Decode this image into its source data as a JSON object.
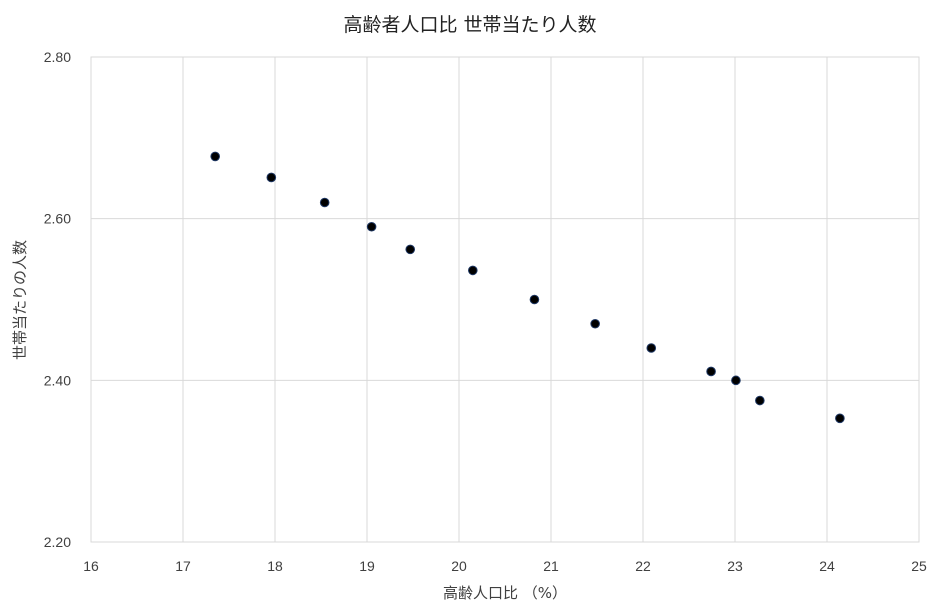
{
  "chart_data": {
    "type": "scatter",
    "title": "高齢者人口比 世帯当たり人数",
    "xlabel": "高齢人口比 （%）",
    "ylabel": "世帯当たりの人数",
    "xlim": [
      16,
      25
    ],
    "ylim": [
      2.2,
      2.8
    ],
    "x_ticks": [
      "16",
      "17",
      "18",
      "19",
      "20",
      "21",
      "22",
      "23",
      "24",
      "25"
    ],
    "y_ticks": [
      "2.20",
      "2.40",
      "2.60",
      "2.80"
    ],
    "x_tick_values": [
      16,
      17,
      18,
      19,
      20,
      21,
      22,
      23,
      24,
      25
    ],
    "y_tick_values": [
      2.2,
      2.4,
      2.6,
      2.8
    ],
    "grid": true,
    "legend": "none",
    "marker_color": "#000000",
    "marker_edge_color": "#1f3864",
    "points": [
      {
        "x": 17.35,
        "y": 2.677
      },
      {
        "x": 17.96,
        "y": 2.651
      },
      {
        "x": 18.54,
        "y": 2.62
      },
      {
        "x": 19.05,
        "y": 2.59
      },
      {
        "x": 19.47,
        "y": 2.562
      },
      {
        "x": 20.15,
        "y": 2.536
      },
      {
        "x": 20.82,
        "y": 2.5
      },
      {
        "x": 21.48,
        "y": 2.47
      },
      {
        "x": 22.09,
        "y": 2.44
      },
      {
        "x": 22.74,
        "y": 2.411
      },
      {
        "x": 23.01,
        "y": 2.4
      },
      {
        "x": 23.27,
        "y": 2.375
      },
      {
        "x": 24.14,
        "y": 2.353
      }
    ]
  }
}
